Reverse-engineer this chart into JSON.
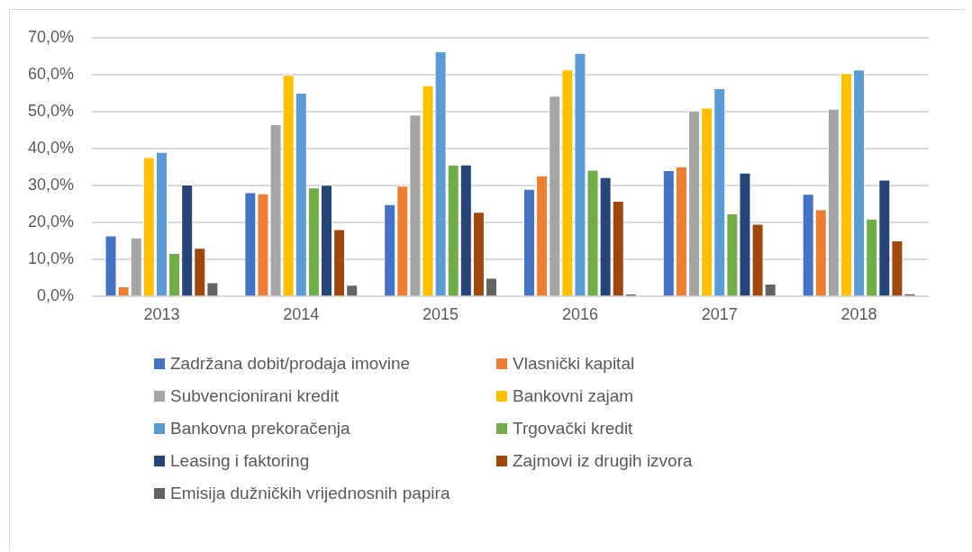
{
  "chart_data": {
    "type": "bar",
    "categories": [
      "2013",
      "2014",
      "2015",
      "2016",
      "2017",
      "2018"
    ],
    "series": [
      {
        "name": "Zadržana dobit/prodaja imovine",
        "color": "#4472c4",
        "values": [
          16.5,
          28.2,
          25.0,
          29.1,
          34.2,
          27.8
        ]
      },
      {
        "name": "Vlasnički kapital",
        "color": "#ed7d31",
        "values": [
          2.8,
          27.9,
          30.0,
          32.8,
          35.2,
          23.6
        ]
      },
      {
        "name": "Subvencionirani kredit",
        "color": "#a5a5a5",
        "values": [
          16.0,
          46.6,
          49.2,
          54.3,
          50.3,
          50.8
        ]
      },
      {
        "name": "Bankovni zajam",
        "color": "#ffc000",
        "values": [
          37.7,
          59.9,
          57.1,
          61.4,
          51.1,
          60.4
        ]
      },
      {
        "name": "Bankovna prekoračenja",
        "color": "#5b9bd5",
        "values": [
          39.1,
          55.1,
          66.3,
          65.9,
          56.3,
          61.4
        ]
      },
      {
        "name": "Trgovački kredit",
        "color": "#70ad47",
        "values": [
          11.8,
          29.5,
          35.7,
          34.3,
          22.5,
          21.1
        ]
      },
      {
        "name": "Leasing i faktoring",
        "color": "#264478",
        "values": [
          30.3,
          30.2,
          35.7,
          32.3,
          33.5,
          31.6
        ]
      },
      {
        "name": "Zajmovi iz drugih izvora",
        "color": "#9e480e",
        "values": [
          13.2,
          18.2,
          22.9,
          25.9,
          19.7,
          15.2
        ]
      },
      {
        "name": "Emisija dužničkih vrijednosnih papira",
        "color": "#636363",
        "values": [
          3.9,
          3.2,
          5.1,
          0.8,
          3.5,
          0.9
        ]
      }
    ],
    "ylim": [
      0,
      70
    ],
    "yticks": [
      {
        "value": 0,
        "label": "0,0%"
      },
      {
        "value": 10,
        "label": "10,0%"
      },
      {
        "value": 20,
        "label": "20,0%"
      },
      {
        "value": 30,
        "label": "30,0%"
      },
      {
        "value": 40,
        "label": "40,0%"
      },
      {
        "value": 50,
        "label": "50,0%"
      },
      {
        "value": 60,
        "label": "60,0%"
      },
      {
        "value": 70,
        "label": "70,0%"
      }
    ],
    "grid": "y",
    "legend": "bottom"
  }
}
